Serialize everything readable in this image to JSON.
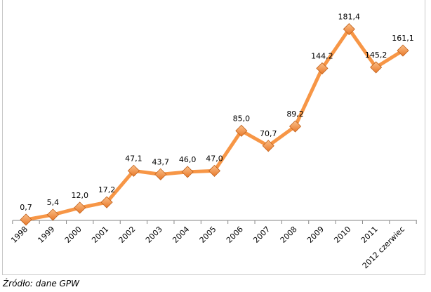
{
  "chart_data": {
    "type": "line",
    "categories": [
      "1998",
      "1999",
      "2000",
      "2001",
      "2002",
      "2003",
      "2004",
      "2005",
      "2006",
      "2007",
      "2008",
      "2009",
      "2010",
      "2011",
      "2012 czerwiec"
    ],
    "values": [
      0.7,
      5.4,
      12.0,
      17.2,
      47.1,
      43.7,
      46.0,
      47.0,
      85.0,
      70.7,
      89.2,
      144.2,
      181.4,
      145.2,
      161.1
    ],
    "value_labels": [
      "0,7",
      "5,4",
      "12,0",
      "17,2",
      "47,1",
      "43,7",
      "46,0",
      "47,0",
      "85,0",
      "70,7",
      "89,2",
      "144,2",
      "181,4",
      "145,2",
      "161,1"
    ],
    "title": "",
    "xlabel": "",
    "ylabel": "",
    "ylim": [
      0,
      200
    ],
    "grid": false,
    "legend": "none",
    "line_color": "#f79646",
    "marker": "diamond"
  },
  "source": "Źródło: dane GPW"
}
